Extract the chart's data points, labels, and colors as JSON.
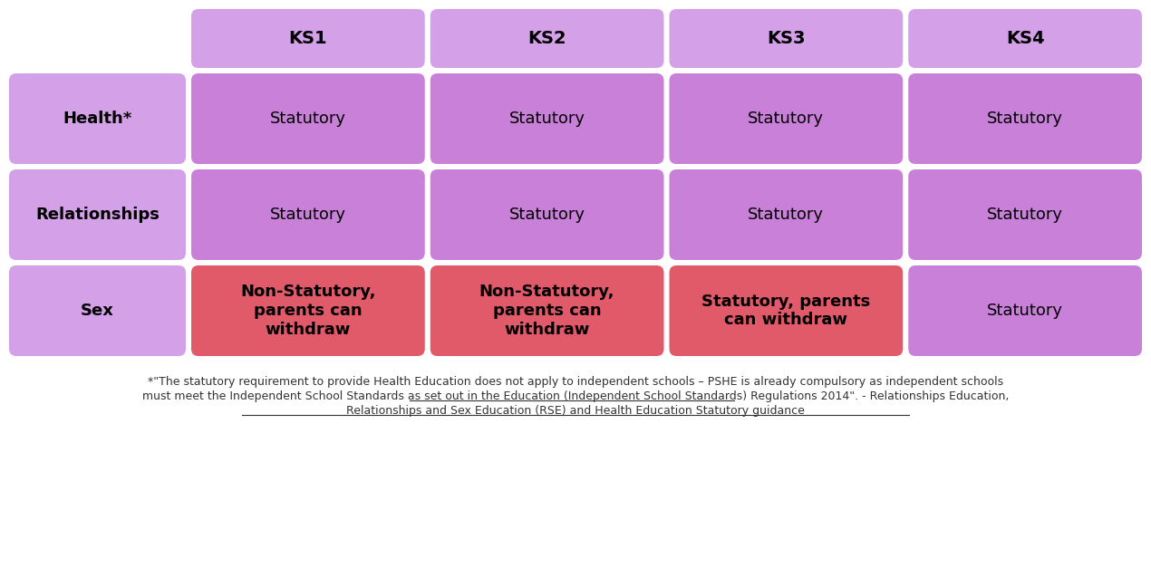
{
  "background_color": "#ffffff",
  "col_headers": [
    "KS1",
    "KS2",
    "KS3",
    "KS4"
  ],
  "row_headers": [
    "Health*",
    "Relationships",
    "Sex"
  ],
  "cell_data": [
    [
      "Statutory",
      "Statutory",
      "Statutory",
      "Statutory"
    ],
    [
      "Statutory",
      "Statutory",
      "Statutory",
      "Statutory"
    ],
    [
      "Non-Statutory,\nparents can\nwithdraw",
      "Non-Statutory,\nparents can\nwithdraw",
      "Statutory, parents\ncan withdraw",
      "Statutory"
    ]
  ],
  "cell_colors": [
    [
      "purple",
      "purple",
      "purple",
      "purple"
    ],
    [
      "purple",
      "purple",
      "purple",
      "purple"
    ],
    [
      "red",
      "red",
      "red",
      "purple"
    ]
  ],
  "cell_bold": [
    [
      false,
      false,
      false,
      false
    ],
    [
      false,
      false,
      false,
      false
    ],
    [
      true,
      true,
      true,
      false
    ]
  ],
  "col_header_bg": "#d4a0e8",
  "cell_purple": "#c880d8",
  "cell_red": "#e05a6a",
  "footnote_line1": "*\"The statutory requirement to provide Health Education does not apply to independent schools – PSHE is already compulsory as independent schools",
  "footnote_line2_plain": "must meet the Independent School Standards as set out in the Education (Independent School Standards) Regulations 2014\". - ",
  "footnote_link1": "Relationships Education,",
  "footnote_link2": "Relationships and Sex Education (RSE) and Health Education Statutory guidance"
}
